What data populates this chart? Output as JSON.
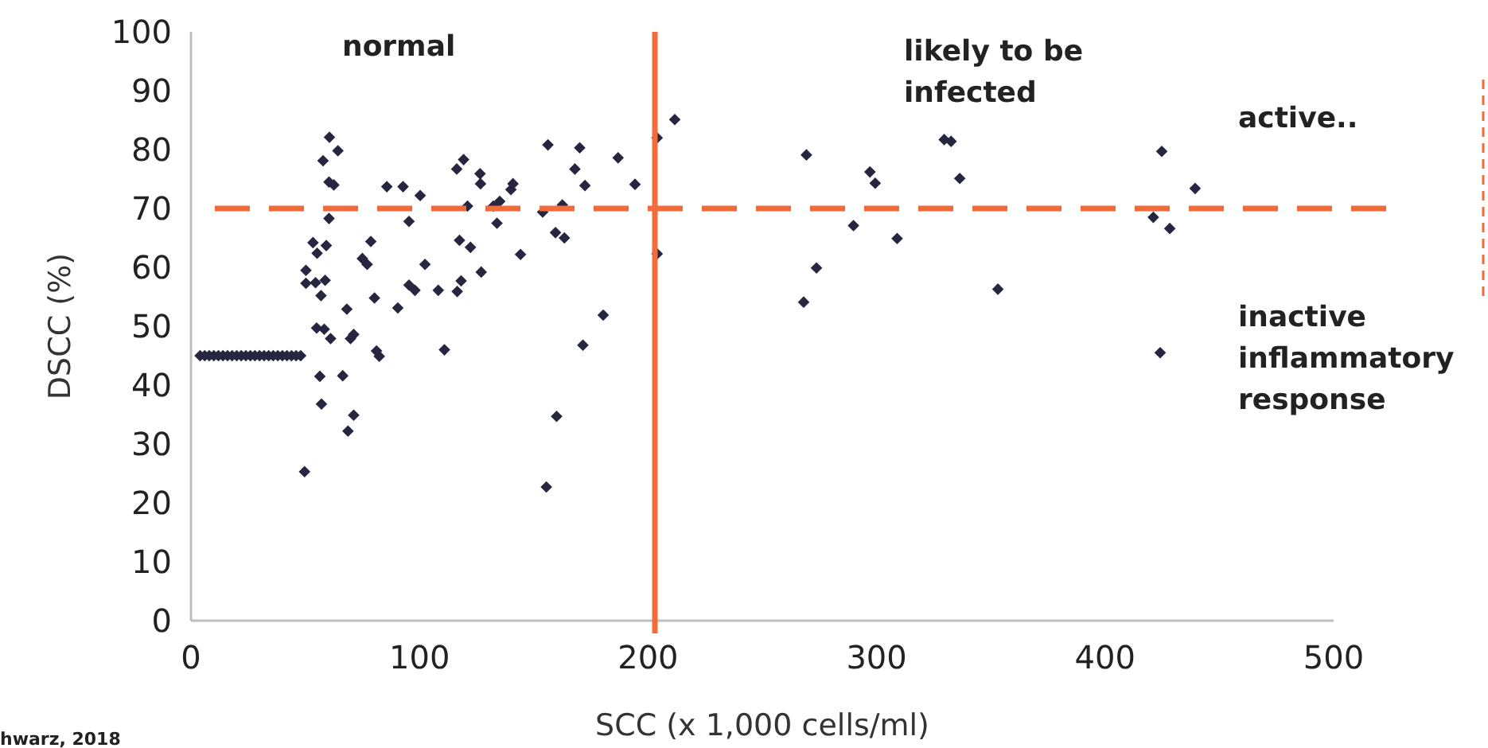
{
  "chart_data": {
    "type": "scatter",
    "xlabel": "SCC (x 1,000 cells/ml)",
    "ylabel": "DSCC (%)",
    "xlim": [
      0,
      500
    ],
    "xticks": [
      0,
      100,
      200,
      300,
      400,
      500
    ],
    "ylim": [
      0,
      100
    ],
    "yticks": [
      0,
      10,
      20,
      30,
      40,
      50,
      60,
      70,
      80,
      90,
      100
    ],
    "marker": "diamond",
    "series": [
      {
        "color": "#262640",
        "x": [
          4,
          6,
          8,
          10,
          12,
          14,
          16,
          18,
          20,
          22,
          24,
          26,
          28,
          30,
          32,
          34,
          36,
          38,
          40,
          42,
          44,
          46,
          48,
          60.6,
          64.3,
          57.8,
          60.4,
          62.5,
          85.7,
          92.8,
          100.3,
          95.4,
          60.4,
          53.4,
          59.2,
          55.2,
          78.7,
          75,
          77.1,
          102.4,
          50.3,
          50.3,
          54.5,
          58.7,
          56.9,
          80.3,
          95.4,
          98,
          68.2,
          90.5,
          55,
          58.3,
          61.1,
          71.2,
          69.8,
          81.2,
          82.4,
          56.4,
          66.4,
          57.1,
          71.2,
          68.7,
          49.7,
          108.2,
          110.9,
          116.3,
          119.3,
          126.5,
          126.7,
          121,
          117.5,
          122.3,
          118.2,
          116.5,
          127,
          133.9,
          132.3,
          135.1,
          140,
          140.9,
          144.2,
          153.9,
          156.2,
          162.5,
          159.5,
          163.4,
          170.1,
          168,
          172.4,
          186.9,
          194.3,
          180.4,
          171.5,
          160,
          155.5,
          204,
          204,
          211.7,
          269.3,
          297.1,
          299.4,
          329.6,
          332.6,
          336.4,
          289.9,
          309,
          273.7,
          268.1,
          353.1,
          424.8,
          439.4,
          421.1,
          428.3,
          424.1
        ],
        "values": [
          45,
          45,
          45,
          45,
          45,
          45,
          45,
          45,
          45,
          45,
          45,
          45,
          45,
          45,
          45,
          45,
          45,
          45,
          45,
          45,
          45,
          45,
          45,
          82.1,
          79.8,
          78.1,
          74.5,
          74,
          73.7,
          73.7,
          72.2,
          67.8,
          68.3,
          64.2,
          63.7,
          62.4,
          64.4,
          61.5,
          60.5,
          60.5,
          59.5,
          57.3,
          57.4,
          57.8,
          55.2,
          54.8,
          57,
          56.1,
          52.9,
          53.1,
          49.7,
          49.5,
          47.9,
          48.6,
          47.9,
          45.8,
          44.9,
          41.5,
          41.6,
          36.8,
          34.9,
          32.2,
          25.3,
          56.1,
          46,
          76.7,
          78.3,
          75.9,
          74.2,
          70.4,
          64.6,
          63.4,
          57.7,
          55.9,
          59.2,
          67.5,
          70.4,
          71.2,
          73.2,
          74.2,
          62.2,
          69.4,
          80.8,
          70.6,
          65.9,
          65,
          80.3,
          76.7,
          73.9,
          78.6,
          74.1,
          51.9,
          46.8,
          34.7,
          22.7,
          82,
          62.3,
          85.1,
          79.1,
          76.2,
          74.3,
          81.7,
          81.4,
          75.1,
          67.1,
          64.9,
          59.9,
          54.1,
          56.3,
          79.7,
          73.4,
          68.5,
          66.6,
          45.5
        ]
      }
    ],
    "ref_lines": [
      {
        "axis": "y",
        "value": 70,
        "color": "#f26b3a",
        "line_style": "dashed"
      },
      {
        "axis": "x",
        "value": 203,
        "color": "#f26b3a",
        "line_style": "solid"
      }
    ],
    "annotations": [
      "normal",
      "likely to be\ninfected",
      "active..",
      "inactive\ninflammatory\nresponse",
      "hwarz, 2018"
    ]
  }
}
